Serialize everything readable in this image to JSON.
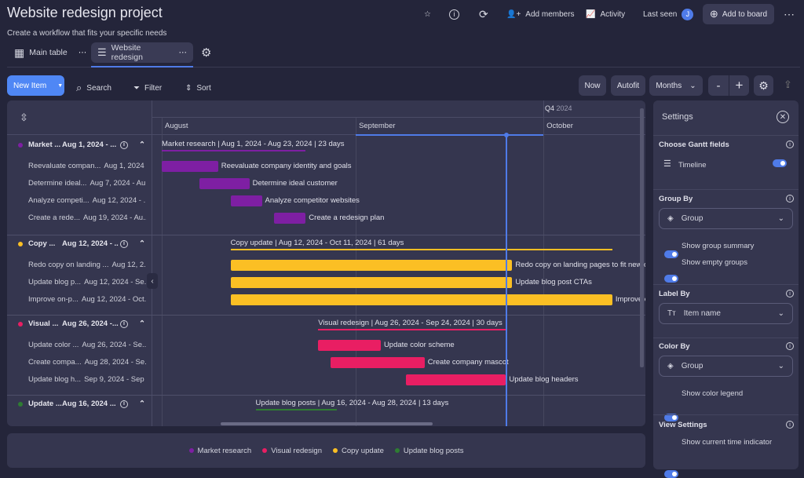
{
  "header": {
    "title": "Website redesign project",
    "subtitle": "Create a workflow that fits your specific needs",
    "add_members": "Add members",
    "activity": "Activity",
    "last_seen": "Last seen",
    "avatar_initial": "J",
    "add_to_board": "Add to board"
  },
  "tabs": [
    {
      "label": "Main table"
    },
    {
      "label": "Website redesign",
      "active": true
    }
  ],
  "toolbar": {
    "new_item": "New Item",
    "search": "Search",
    "filter": "Filter",
    "sort": "Sort",
    "now": "Now",
    "autofit": "Autofit",
    "scale": "Months",
    "zoom_out": "-",
    "zoom_in": "+"
  },
  "timeline": {
    "quarter": "Q4",
    "quarter_year": "2024",
    "months": [
      "August",
      "September",
      "October"
    ],
    "current_time": "2024-09-25"
  },
  "colors": {
    "Market research": "#7e1fa3",
    "Copy update": "#fbbf24",
    "Visual redesign": "#e91e63",
    "Update blog posts": "#2e7d32",
    "accent": "#4f7be8"
  },
  "groups": [
    {
      "name": "Market research",
      "short": "Market ...",
      "dates": "Aug 1, 2024 - ...",
      "summary": "Market research | Aug 1, 2024 - Aug 23, 2024 | 23 days",
      "start": "2024-08-01",
      "end": "2024-08-23",
      "items": [
        {
          "short": "Reevaluate compan...",
          "dates": "Aug 1, 2024 ...",
          "label": "Reevaluate company identity and goals",
          "start": "2024-08-01",
          "end": "2024-08-09"
        },
        {
          "short": "Determine ideal...",
          "dates": "Aug 7, 2024 - Au...",
          "label": "Determine ideal customer",
          "start": "2024-08-07",
          "end": "2024-08-14"
        },
        {
          "short": "Analyze competi...",
          "dates": "Aug 12, 2024 - ...",
          "label": "Analyze competitor websites",
          "start": "2024-08-12",
          "end": "2024-08-16"
        },
        {
          "short": "Create a rede...",
          "dates": "Aug 19, 2024 - Au...",
          "label": "Create a redesign plan",
          "start": "2024-08-19",
          "end": "2024-08-23"
        }
      ]
    },
    {
      "name": "Copy update",
      "short": "Copy ...",
      "dates": "Aug 12, 2024 - ...",
      "summary": "Copy update | Aug 12, 2024 - Oct 11, 2024 | 61 days",
      "start": "2024-08-12",
      "end": "2024-10-11",
      "items": [
        {
          "short": "Redo copy on landing ...",
          "dates": "Aug 12, 2...",
          "label": "Redo copy on landing pages to fit new company identity",
          "start": "2024-08-12",
          "end": "2024-09-25"
        },
        {
          "short": "Update blog p...",
          "dates": "Aug 12, 2024 - Se...",
          "label": "Update blog post CTAs",
          "start": "2024-08-12",
          "end": "2024-09-25"
        },
        {
          "short": "Improve on-p...",
          "dates": "Aug 12, 2024 - Oct...",
          "label": "Improve on-page SEO",
          "start": "2024-08-12",
          "end": "2024-10-11"
        }
      ]
    },
    {
      "name": "Visual redesign",
      "short": "Visual ...",
      "dates": "Aug 26, 2024 -...",
      "summary": "Visual redesign | Aug 26, 2024 - Sep 24, 2024 | 30 days",
      "start": "2024-08-26",
      "end": "2024-09-24",
      "items": [
        {
          "short": "Update color ...",
          "dates": "Aug 26, 2024 - Se...",
          "label": "Update color scheme",
          "start": "2024-08-26",
          "end": "2024-09-04"
        },
        {
          "short": "Create compa...",
          "dates": "Aug 28, 2024 - Se...",
          "label": "Create company mascot",
          "start": "2024-08-28",
          "end": "2024-09-11"
        },
        {
          "short": "Update blog h...",
          "dates": "Sep 9, 2024 - Sep ...",
          "label": "Update blog headers",
          "start": "2024-09-09",
          "end": "2024-09-24"
        }
      ]
    },
    {
      "name": "Update blog posts",
      "short": "Update ...",
      "dates": "Aug 16, 2024 ...",
      "summary": "Update blog posts | Aug 16, 2024 - Aug 28, 2024 | 13 days",
      "start": "2024-08-16",
      "end": "2024-08-28",
      "items": []
    }
  ],
  "legend": [
    "Market research",
    "Visual redesign",
    "Copy update",
    "Update blog posts"
  ],
  "settings": {
    "title": "Settings",
    "gantt_fields": "Choose Gantt fields",
    "timeline": "Timeline",
    "group_by": "Group By",
    "group_by_value": "Group",
    "show_group_summary": "Show group summary",
    "show_empty_groups": "Show empty groups",
    "label_by": "Label By",
    "label_by_value": "Item name",
    "color_by": "Color By",
    "color_by_value": "Group",
    "show_color_legend": "Show color legend",
    "view_settings": "View Settings",
    "show_current_time": "Show current time indicator"
  }
}
